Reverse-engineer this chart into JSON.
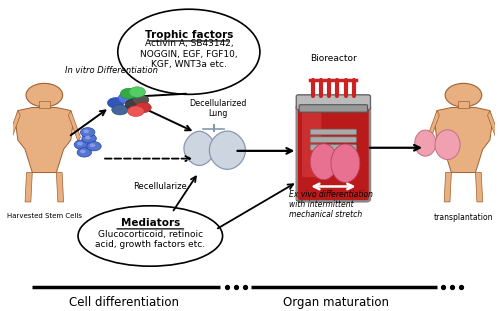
{
  "background_color": "#ffffff",
  "trophic_title": "Trophic factors",
  "trophic_text": "Activin A, SB43142,\nNOGGIN, EGF, FGF10,\nKGF, WNT3a etc.",
  "mediators_title": "Mediators",
  "mediators_text": "Glucocorticoid, retinoic\nacid, growth factors etc.",
  "label_harvested": "Harvested Stem Cells",
  "label_invitro": "In vitro Differentiation",
  "label_decell": "Decellularized\nLung",
  "label_recell": "Recellularize",
  "label_bioreactor": "Bioreactor",
  "label_exvivo": "Ex vivo differentiation\nwith intermittent\nmechanical stretch",
  "label_transplantation": "transplantation",
  "label_cell_diff": "Cell differentiation",
  "label_organ_mat": "Organ maturation"
}
